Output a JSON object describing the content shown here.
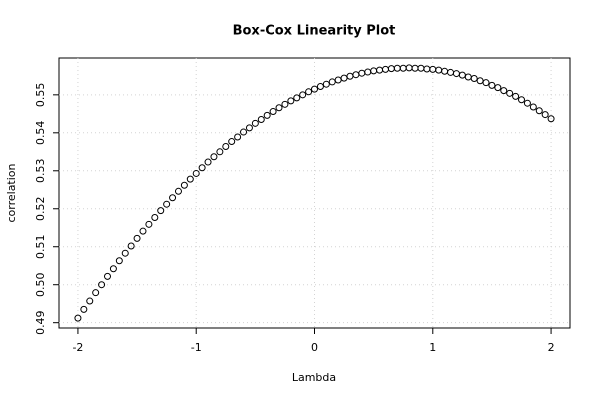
{
  "chart_data": {
    "type": "scatter",
    "title": "Box-Cox Linearity Plot",
    "xlabel": "Lambda",
    "ylabel": "correlation",
    "x": [
      -2,
      -1.95,
      -1.9,
      -1.85,
      -1.8,
      -1.75,
      -1.7,
      -1.65,
      -1.6,
      -1.55,
      -1.5,
      -1.45,
      -1.4,
      -1.35,
      -1.3,
      -1.25,
      -1.2,
      -1.15,
      -1.1,
      -1.05,
      -1,
      -0.95,
      -0.9,
      -0.85,
      -0.8,
      -0.75,
      -0.7,
      -0.65,
      -0.6,
      -0.55,
      -0.5,
      -0.45,
      -0.4,
      -0.35,
      -0.3,
      -0.25,
      -0.2,
      -0.15,
      -0.1,
      -0.05,
      0,
      0.05,
      0.1,
      0.15,
      0.2,
      0.25,
      0.3,
      0.35,
      0.4,
      0.45,
      0.5,
      0.55,
      0.6,
      0.65,
      0.7,
      0.75,
      0.8,
      0.85,
      0.9,
      0.95,
      1,
      1.05,
      1.1,
      1.15,
      1.2,
      1.25,
      1.3,
      1.35,
      1.4,
      1.45,
      1.5,
      1.55,
      1.6,
      1.65,
      1.7,
      1.75,
      1.8,
      1.85,
      1.9,
      1.95,
      2
    ],
    "values": [
      0.4912,
      0.4935,
      0.4957,
      0.4979,
      0.5,
      0.5022,
      0.5042,
      0.5063,
      0.5083,
      0.5102,
      0.5122,
      0.5141,
      0.5159,
      0.5177,
      0.5195,
      0.5212,
      0.5229,
      0.5246,
      0.5262,
      0.5278,
      0.5293,
      0.5308,
      0.5323,
      0.5337,
      0.535,
      0.5364,
      0.5377,
      0.5389,
      0.5402,
      0.5413,
      0.5425,
      0.5435,
      0.5446,
      0.5456,
      0.5466,
      0.5475,
      0.5484,
      0.5492,
      0.55,
      0.5508,
      0.5515,
      0.5522,
      0.5528,
      0.5534,
      0.5539,
      0.5544,
      0.5549,
      0.5553,
      0.5557,
      0.556,
      0.5563,
      0.5565,
      0.5567,
      0.5569,
      0.557,
      0.557,
      0.5571,
      0.557,
      0.557,
      0.5568,
      0.5567,
      0.5565,
      0.5562,
      0.5559,
      0.5556,
      0.5552,
      0.5547,
      0.5543,
      0.5537,
      0.5532,
      0.5525,
      0.5519,
      0.5511,
      0.5504,
      0.5496,
      0.5487,
      0.5478,
      0.5468,
      0.5458,
      0.5448,
      0.5437
    ],
    "color": "#000000",
    "xlim": [
      -2.16,
      2.16
    ],
    "xticks": [
      -2,
      -1,
      0,
      1,
      2
    ],
    "ylim": [
      0.4886,
      0.5597
    ],
    "yticks": [
      0.49,
      {
        "value": 0.5,
        "label": "0.50"
      },
      0.51,
      0.52,
      0.53,
      0.54,
      0.55
    ],
    "grid": true
  }
}
